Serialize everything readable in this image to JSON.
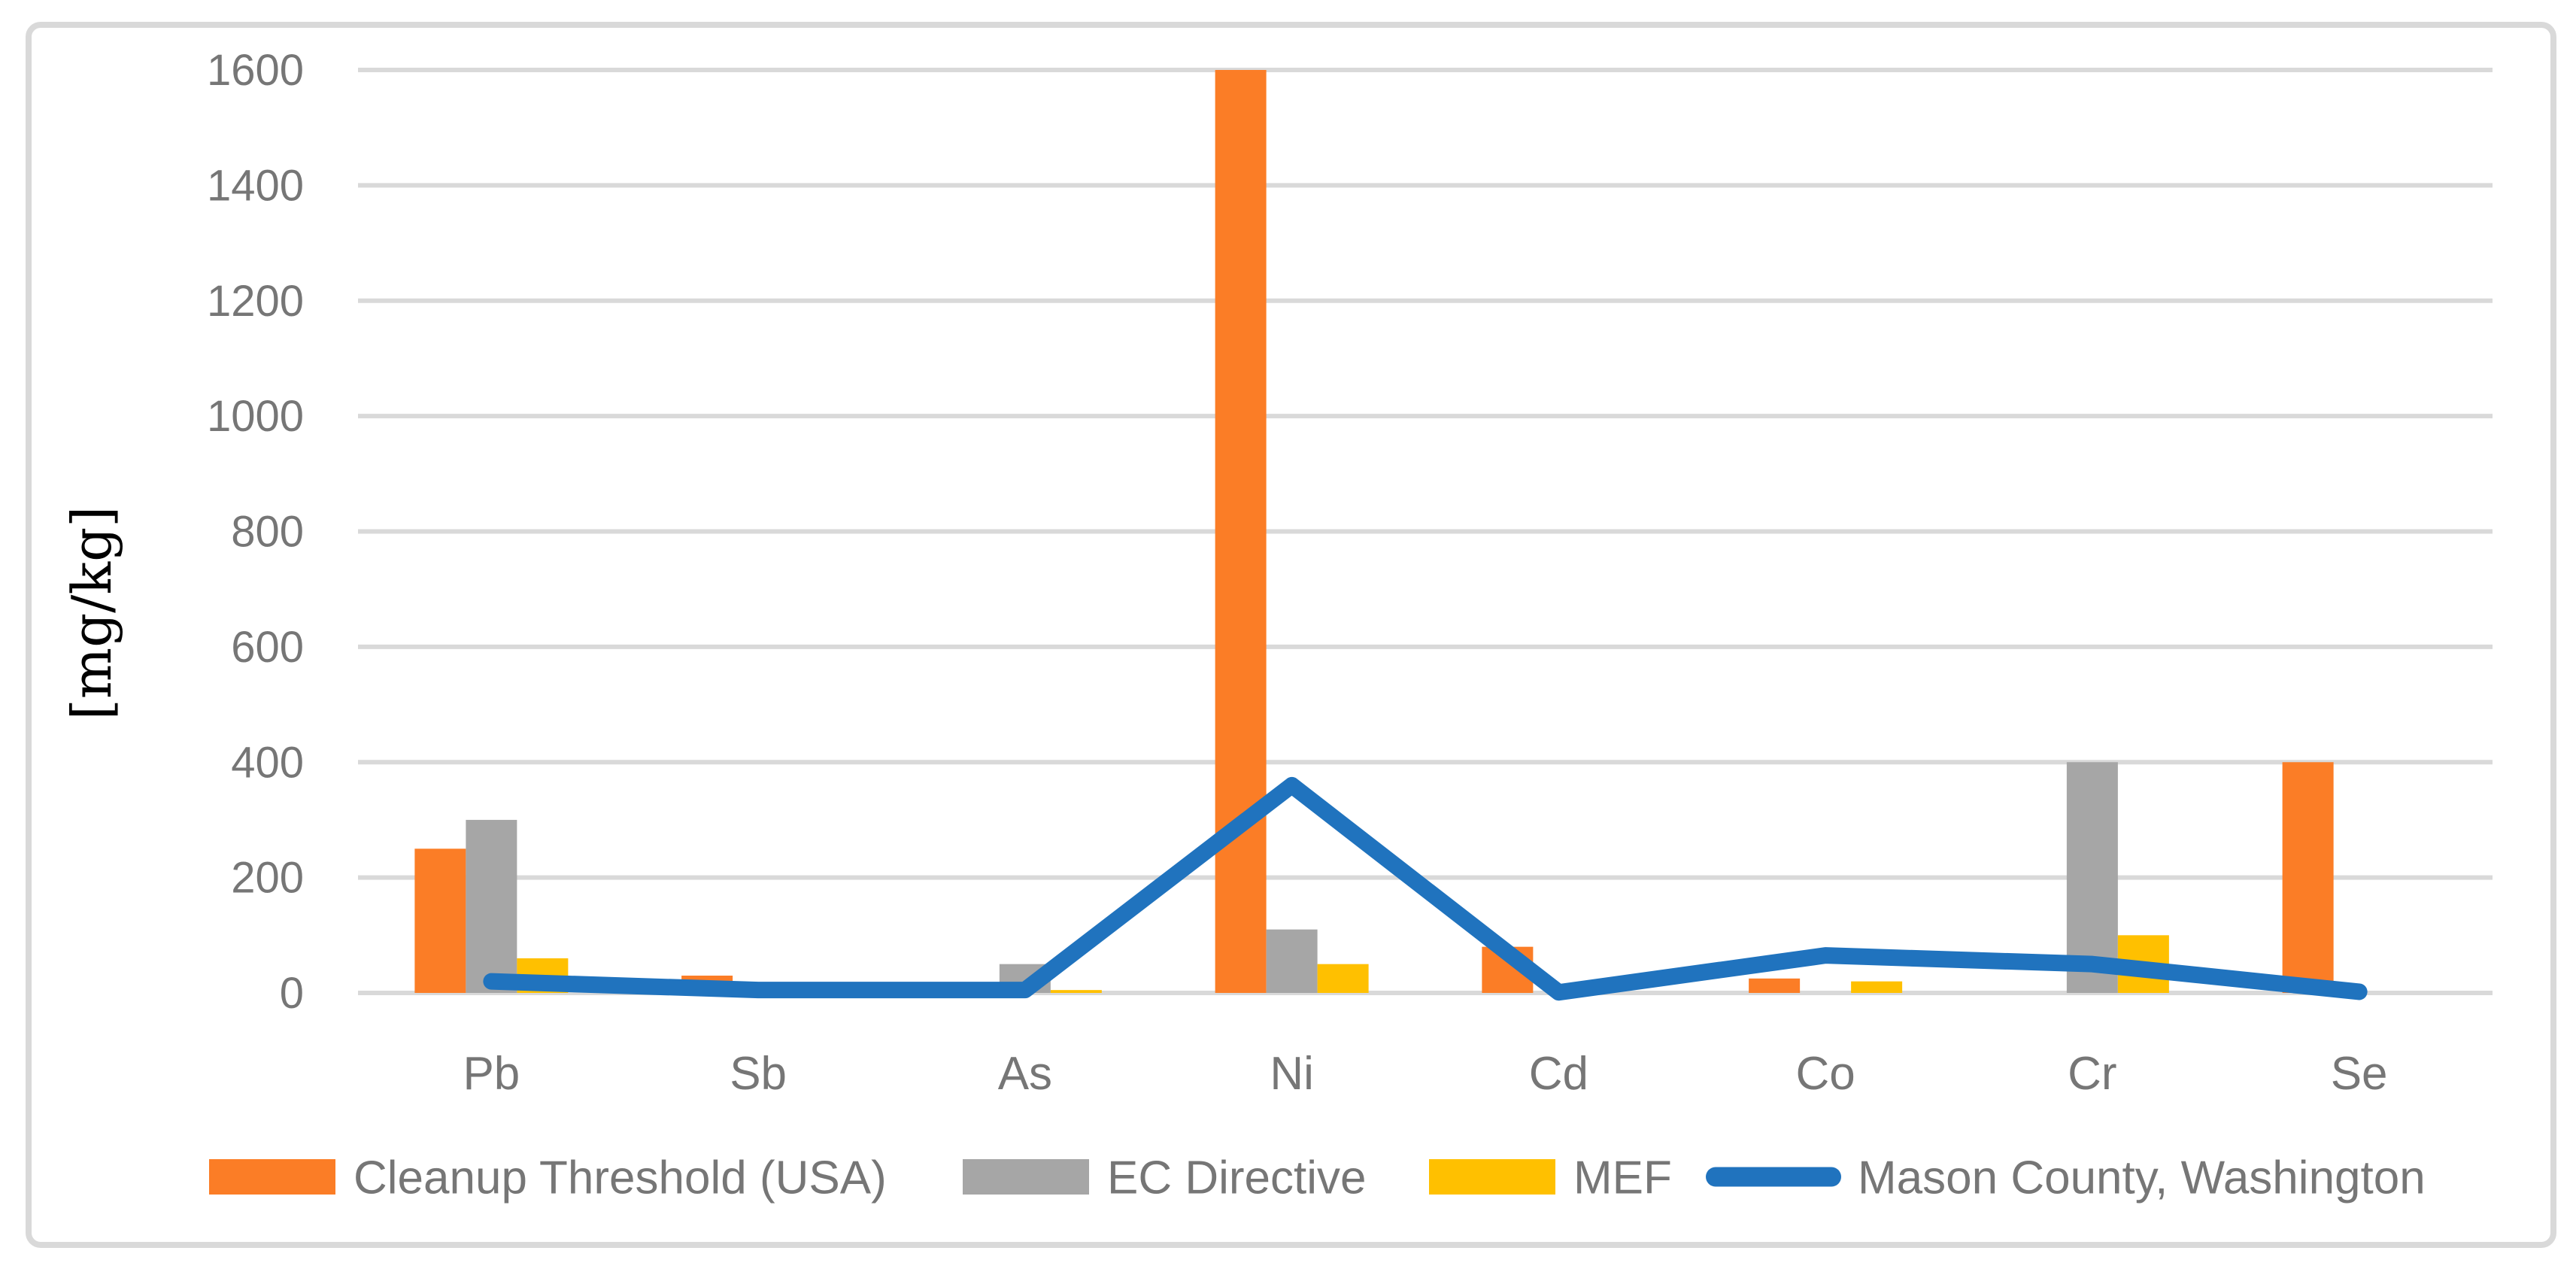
{
  "chart_data": {
    "type": "combo-clustered-bar-with-line",
    "title": "",
    "ylabel": "[mg/kg]",
    "categories": [
      "Pb",
      "Sb",
      "As",
      "Ni",
      "Cd",
      "Co",
      "Cr",
      "Se"
    ],
    "series": [
      {
        "name": "Cleanup Threshold (USA)",
        "type": "bar",
        "color": "#FB7D26",
        "values": [
          250,
          30,
          0,
          1600,
          80,
          25,
          0,
          400
        ]
      },
      {
        "name": "EC Directive",
        "type": "bar",
        "color": "#A6A6A6",
        "values": [
          300,
          0,
          50,
          110,
          0,
          0,
          400,
          0
        ]
      },
      {
        "name": "MEF",
        "type": "bar",
        "color": "#FFC000",
        "values": [
          60,
          0,
          5,
          50,
          0,
          20,
          100,
          0
        ]
      },
      {
        "name": "Mason County, Washington",
        "type": "line",
        "color": "#2073BE",
        "values": [
          20,
          5,
          5,
          360,
          1,
          65,
          50,
          2
        ]
      }
    ],
    "xlabel": "",
    "ylim": [
      0,
      1600
    ],
    "ytick_step": 200,
    "yticks": [
      0,
      200,
      400,
      600,
      800,
      1000,
      1200,
      1400,
      1600
    ],
    "grid": "horizontal",
    "legend_position": "bottom"
  },
  "style": {
    "background": "#FFFFFF",
    "grid_color": "#D9D9D9",
    "border_color": "#D9D9D9",
    "tick_label_color": "#767676",
    "category_label_color": "#767676",
    "legend_text_color": "#767676",
    "axis_title_color": "#000000"
  }
}
